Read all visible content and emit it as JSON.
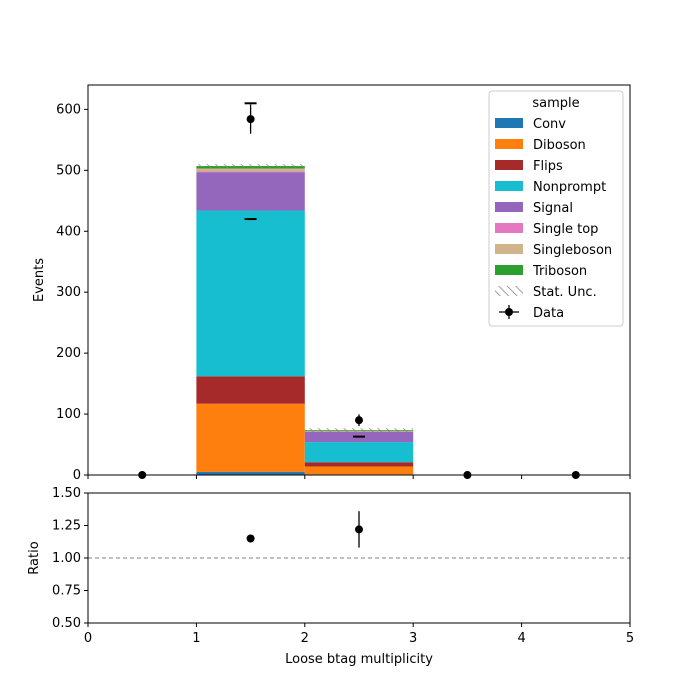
{
  "chart_data": [
    {
      "type": "bar",
      "stacked": true,
      "categories": [
        "0",
        "1",
        "2",
        "3",
        "4"
      ],
      "bin_edges": [
        0,
        1,
        2,
        3,
        4,
        5
      ],
      "xlim": [
        0,
        5
      ],
      "ylim": [
        0,
        640
      ],
      "ylabel": "Events",
      "yticks": [
        0,
        100,
        200,
        300,
        400,
        500,
        600
      ],
      "xticks": [
        0,
        1,
        2,
        3,
        4,
        5
      ],
      "legend_title": "sample",
      "legend_position": "top-right",
      "series": [
        {
          "name": "Conv",
          "color": "#1f77b4",
          "values": [
            0,
            5,
            1,
            0,
            0
          ]
        },
        {
          "name": "Diboson",
          "color": "#ff7f0e",
          "values": [
            0,
            112,
            13,
            0,
            0
          ]
        },
        {
          "name": "Flips",
          "color": "#a62a2a",
          "values": [
            0,
            45,
            7,
            0,
            0
          ]
        },
        {
          "name": "Nonprompt",
          "color": "#17becf",
          "values": [
            0,
            272,
            33,
            0,
            0
          ]
        },
        {
          "name": "Signal",
          "color": "#9467bd",
          "values": [
            0,
            63,
            17,
            0,
            0
          ]
        },
        {
          "name": "Single top",
          "color": "#e377c2",
          "values": [
            0,
            1,
            0.5,
            0,
            0
          ]
        },
        {
          "name": "Singleboson",
          "color": "#d2b48c",
          "values": [
            0,
            5,
            0.5,
            0,
            0
          ]
        },
        {
          "name": "Triboson",
          "color": "#2ca02c",
          "values": [
            0,
            4,
            1.5,
            0,
            0
          ]
        }
      ],
      "stat_unc_label": "Stat. Unc.",
      "data": {
        "name": "Data",
        "x": [
          0.5,
          1.5,
          2.5,
          3.5,
          4.5
        ],
        "y": [
          0,
          584,
          90,
          0,
          0
        ],
        "yerr": [
          0,
          24,
          9.5,
          0,
          0
        ]
      },
      "signal_markers": {
        "x": [
          1.5,
          2.5
        ],
        "y": [
          420,
          63
        ]
      },
      "background_total_markers": {
        "x": [
          1.5
        ],
        "y": [
          610
        ]
      }
    },
    {
      "type": "scatter",
      "x": [
        1.5,
        2.5
      ],
      "y": [
        1.15,
        1.22
      ],
      "yerr": [
        0.03,
        0.14
      ],
      "xlim": [
        0,
        5
      ],
      "ylim": [
        0.5,
        1.5
      ],
      "xlabel": "Loose btag multiplicity",
      "ylabel": "Ratio",
      "reference_line": 1.0,
      "yticks": [
        "0.50",
        "0.75",
        "1.00",
        "1.25",
        "1.50"
      ],
      "xticks": [
        "0",
        "1",
        "2",
        "3",
        "4",
        "5"
      ]
    }
  ]
}
